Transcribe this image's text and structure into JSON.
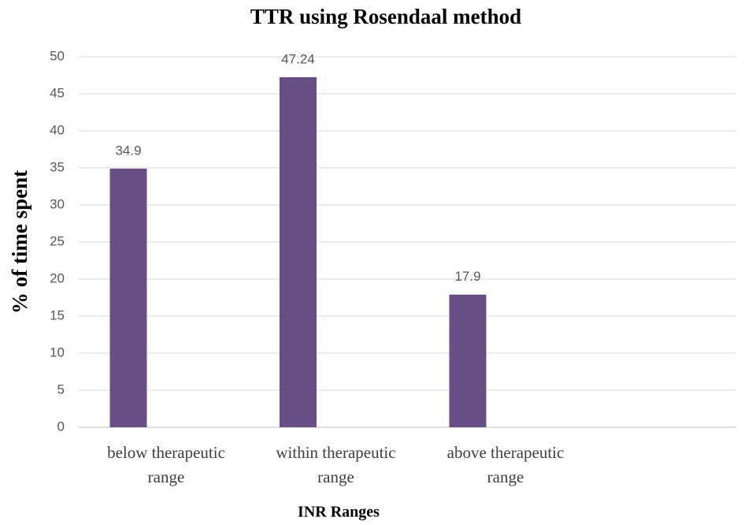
{
  "chart_data": {
    "type": "bar",
    "title": "TTR using Rosendaal method",
    "x_label": "INR Ranges",
    "y_label": "% of time spent",
    "categories": [
      "below therapeutic range",
      "within therapeutic range",
      "above therapeutic range",
      null
    ],
    "values": [
      34.9,
      47.24,
      17.9,
      null
    ],
    "color": "#674f86",
    "ylim": [
      0,
      50
    ],
    "yticks": [
      0,
      5,
      10,
      15,
      20,
      25,
      30,
      35,
      40,
      45,
      50
    ],
    "grid": true
  }
}
